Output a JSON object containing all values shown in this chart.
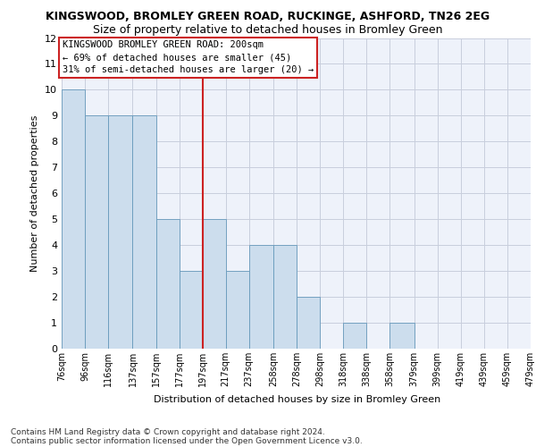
{
  "title1": "KINGSWOOD, BROMLEY GREEN ROAD, RUCKINGE, ASHFORD, TN26 2EG",
  "title2": "Size of property relative to detached houses in Bromley Green",
  "xlabel": "Distribution of detached houses by size in Bromley Green",
  "ylabel": "Number of detached properties",
  "footnote1": "Contains HM Land Registry data © Crown copyright and database right 2024.",
  "footnote2": "Contains public sector information licensed under the Open Government Licence v3.0.",
  "annotation_line1": "KINGSWOOD BROMLEY GREEN ROAD: 200sqm",
  "annotation_line2": "← 69% of detached houses are smaller (45)",
  "annotation_line3": "31% of semi-detached houses are larger (20) →",
  "bin_edges": [
    76,
    96,
    116,
    137,
    157,
    177,
    197,
    217,
    237,
    258,
    278,
    298,
    318,
    338,
    358,
    379,
    399,
    419,
    439,
    459,
    479
  ],
  "bar_heights": [
    10,
    9,
    9,
    9,
    5,
    3,
    5,
    3,
    4,
    4,
    2,
    0,
    1,
    0,
    1,
    0,
    0,
    0,
    0,
    0
  ],
  "xtick_labels": [
    "76sqm",
    "96sqm",
    "116sqm",
    "137sqm",
    "157sqm",
    "177sqm",
    "197sqm",
    "217sqm",
    "237sqm",
    "258sqm",
    "278sqm",
    "298sqm",
    "318sqm",
    "338sqm",
    "358sqm",
    "379sqm",
    "399sqm",
    "419sqm",
    "439sqm",
    "459sqm",
    "479sqm"
  ],
  "ylim": [
    0,
    12
  ],
  "yticks": [
    0,
    1,
    2,
    3,
    4,
    5,
    6,
    7,
    8,
    9,
    10,
    11,
    12
  ],
  "red_line_x": 197,
  "bar_color": "#ccdded",
  "bar_edge_color": "#6699bb",
  "background_color": "#eef2fa",
  "annotation_box_color": "#ffffff",
  "annotation_box_edge": "#cc2222",
  "red_line_color": "#cc2222",
  "grid_color": "#c8cedd",
  "title1_fontsize": 9,
  "title2_fontsize": 9,
  "footnote_fontsize": 6.5,
  "ylabel_fontsize": 8,
  "xlabel_fontsize": 8,
  "ytick_fontsize": 8,
  "xtick_fontsize": 7,
  "annot_fontsize": 7.5
}
